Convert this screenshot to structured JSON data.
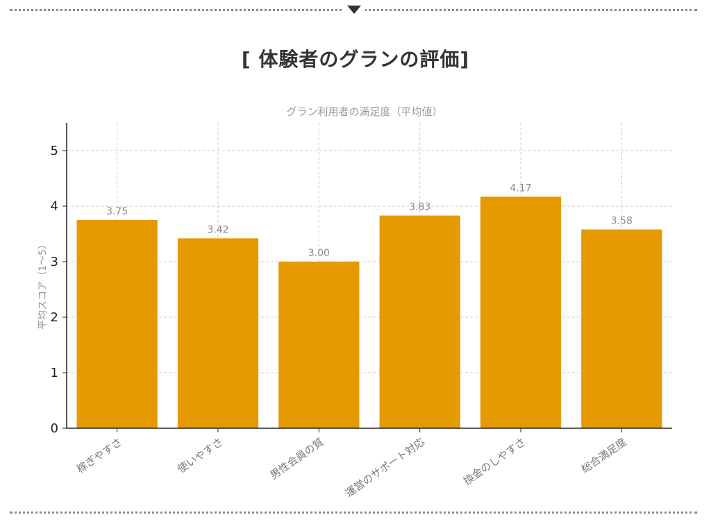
{
  "page": {
    "title": "[ 体験者のグランの評価]"
  },
  "chart_data": {
    "type": "bar",
    "title": "グラン利用者の満足度（平均値）",
    "xlabel": "",
    "ylabel": "平均スコア（1〜5）",
    "categories": [
      "稼ぎやすさ",
      "使いやすさ",
      "男性会員の質",
      "運営のサポート対応",
      "換金のしやすさ",
      "総合満足度"
    ],
    "values": [
      3.75,
      3.42,
      3.0,
      3.83,
      4.17,
      3.58
    ],
    "value_labels": [
      "3.75",
      "3.42",
      "3.00",
      "3.83",
      "4.17",
      "3.58"
    ],
    "ylim": [
      0,
      5.5
    ],
    "yticks": [
      0,
      1,
      2,
      3,
      4,
      5
    ],
    "grid": true,
    "bar_color": "#E59A00",
    "grid_color": "#cccccc"
  }
}
